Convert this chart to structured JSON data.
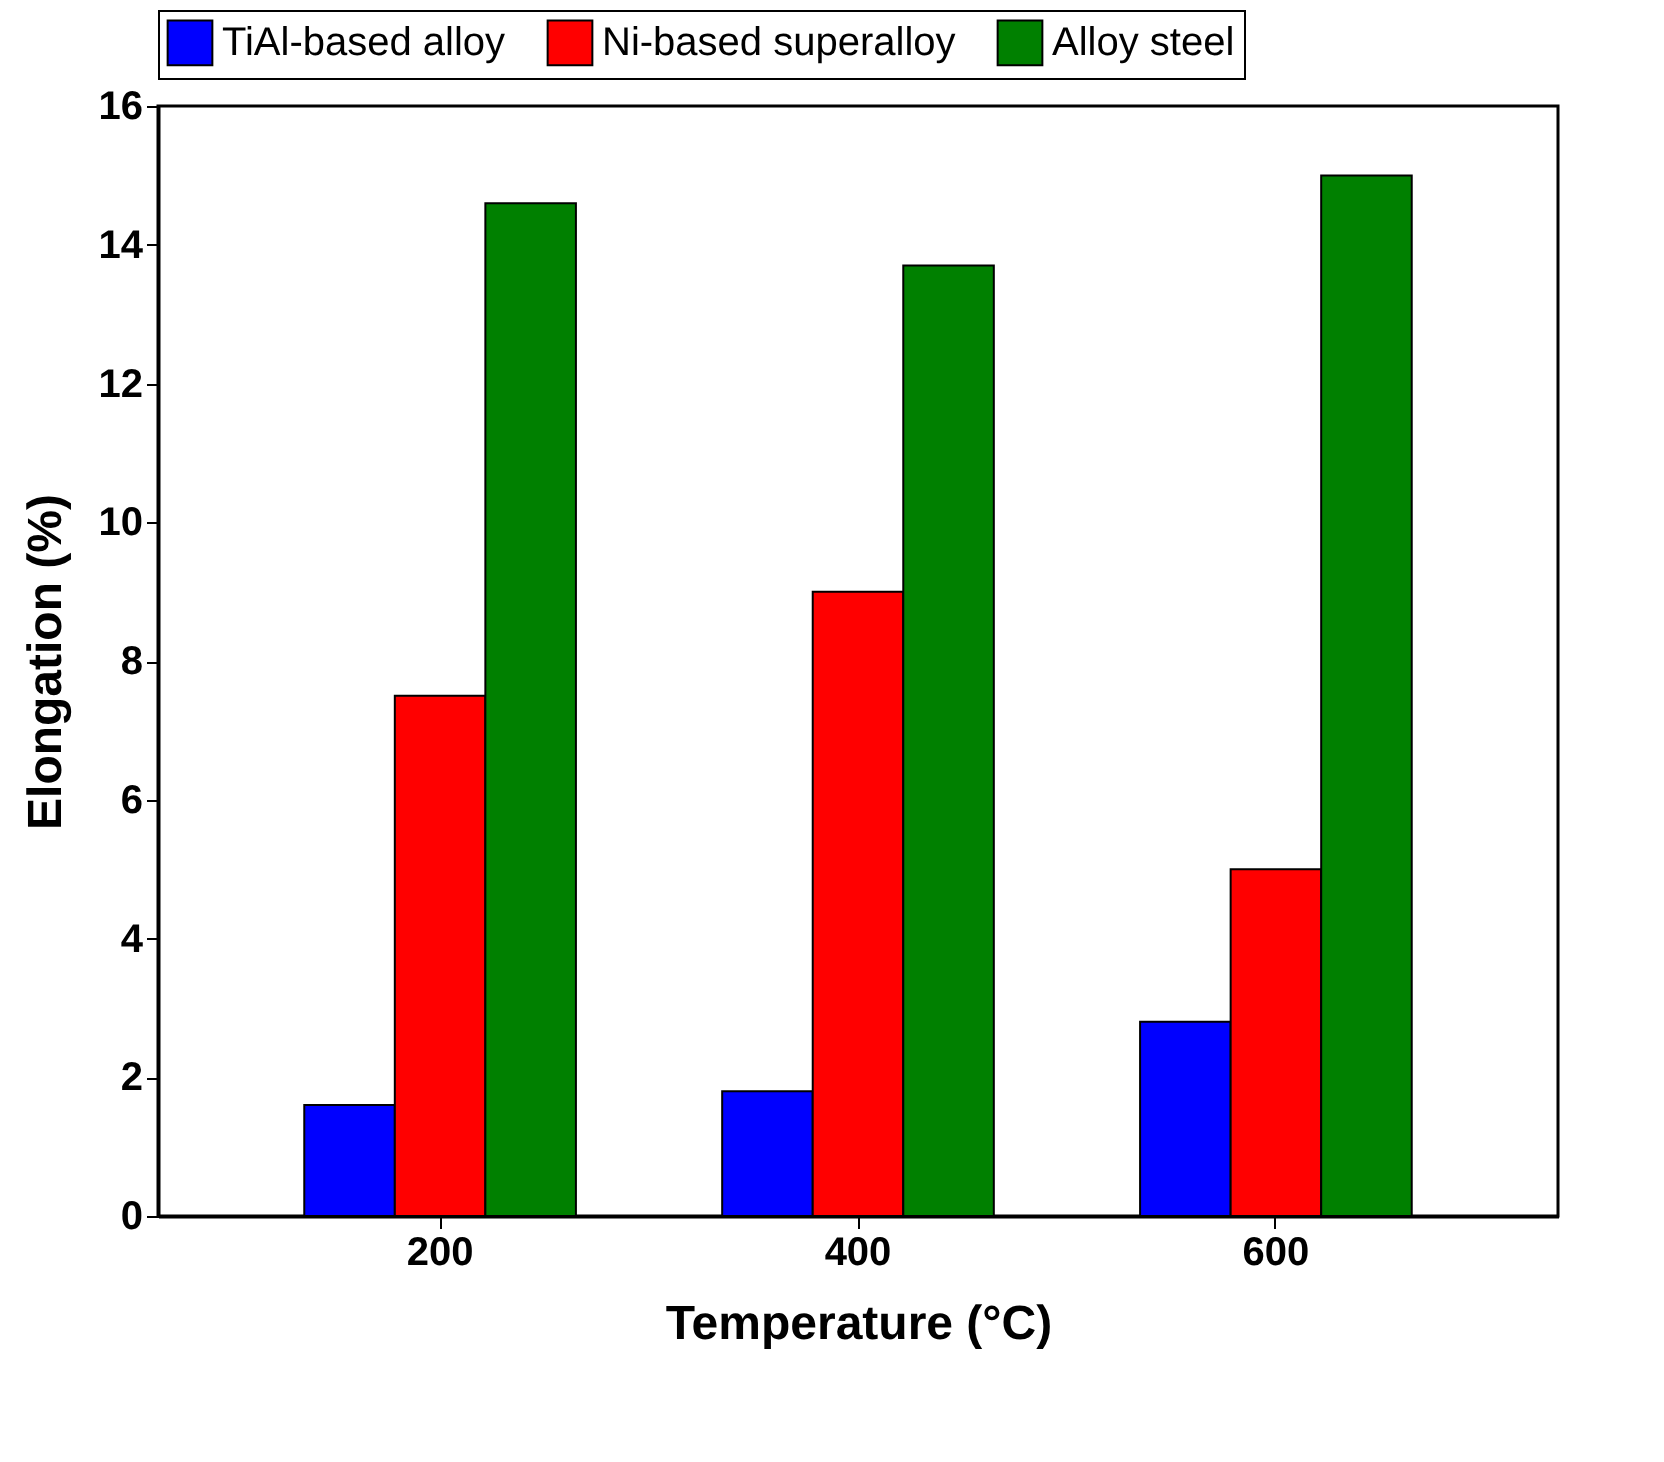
{
  "chart_data": {
    "type": "bar",
    "xlabel": "Temperature (°C)",
    "ylabel": "Elongation (%)",
    "categories": [
      "200",
      "400",
      "600"
    ],
    "series": [
      {
        "name": "TiAl-based alloy",
        "color": "#0000ff",
        "values": [
          1.6,
          1.8,
          2.8
        ]
      },
      {
        "name": "Ni-based superalloy",
        "color": "#ff0000",
        "values": [
          7.5,
          9.0,
          5.0
        ]
      },
      {
        "name": "Alloy steel",
        "color": "#008000",
        "values": [
          14.6,
          13.7,
          15.0
        ]
      }
    ],
    "ylim": [
      0,
      16
    ],
    "yticks": [
      0,
      2,
      4,
      6,
      8,
      10,
      12,
      14,
      16
    ],
    "grid": false,
    "legend": "top"
  }
}
